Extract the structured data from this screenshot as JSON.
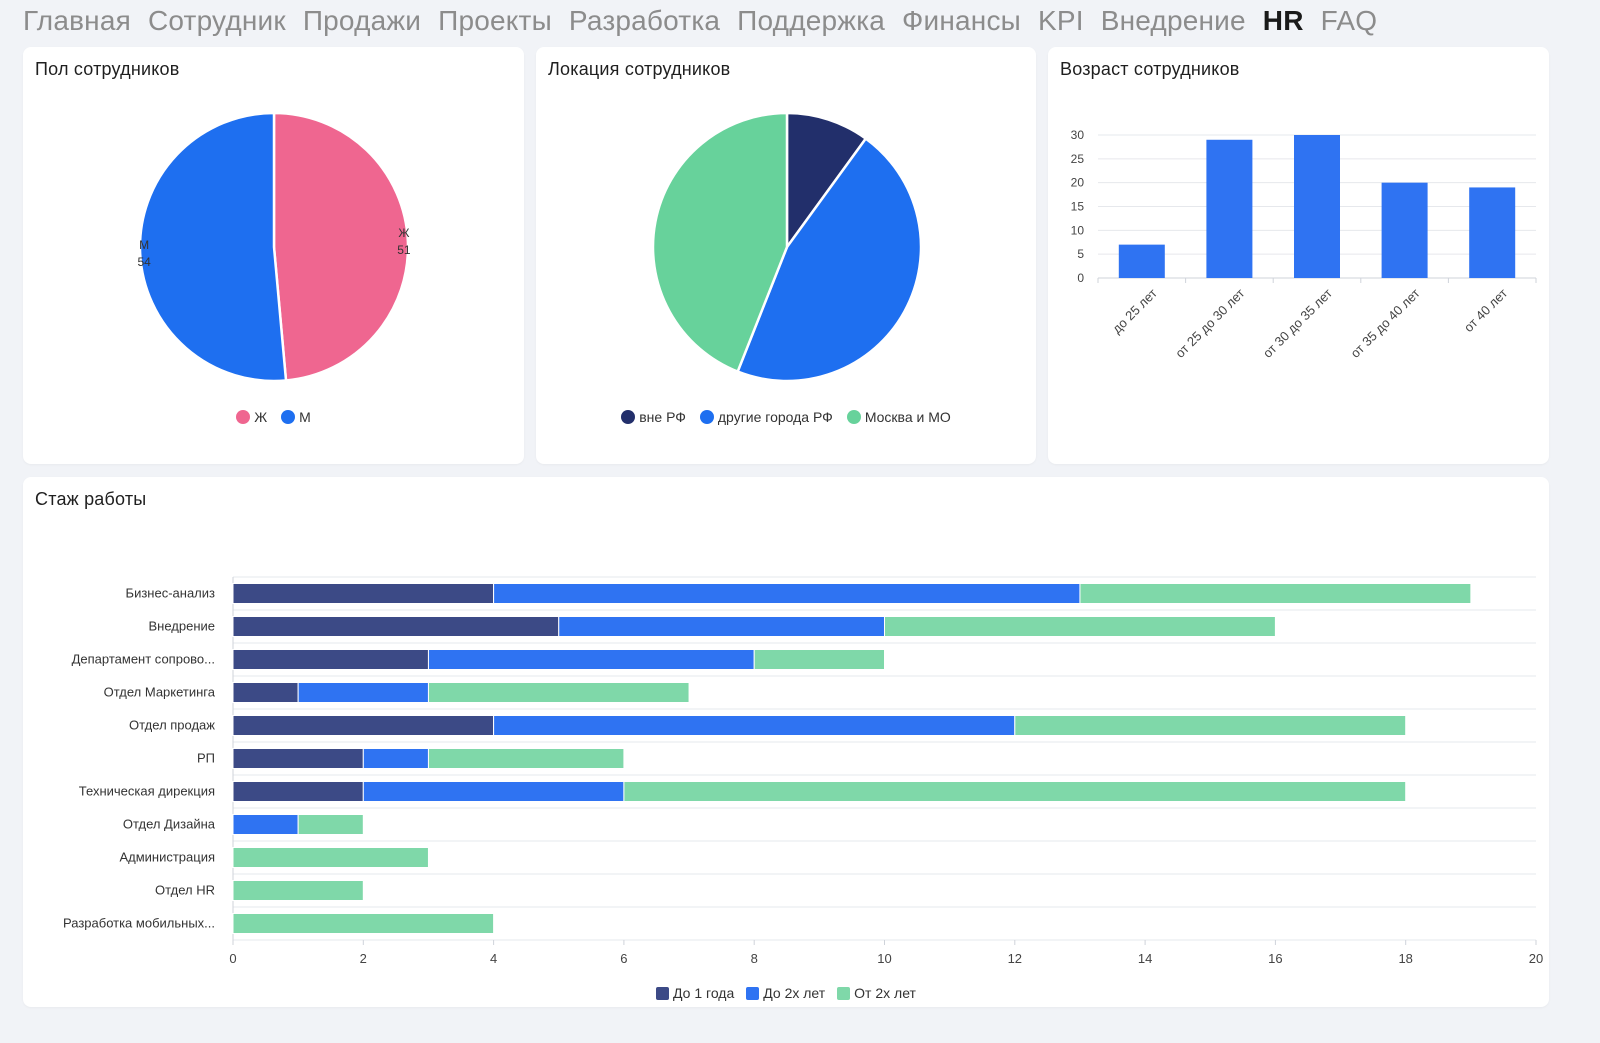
{
  "nav": {
    "tabs": [
      {
        "label": "Главная"
      },
      {
        "label": "Сотрудник"
      },
      {
        "label": "Продажи"
      },
      {
        "label": "Проекты"
      },
      {
        "label": "Разработка"
      },
      {
        "label": "Поддержка"
      },
      {
        "label": "Финансы"
      },
      {
        "label": "KPI"
      },
      {
        "label": "Внедрение"
      },
      {
        "label": "HR",
        "active": true
      },
      {
        "label": "FAQ"
      }
    ]
  },
  "gender": {
    "title": "Пол сотрудников",
    "chart_data": {
      "type": "pie",
      "slices": [
        {
          "label": "Ж",
          "value": 51,
          "color": "#ef6690"
        },
        {
          "label": "М",
          "value": 54,
          "color": "#1e6ff0"
        }
      ]
    }
  },
  "location": {
    "title": "Локация сотрудников",
    "chart_data": {
      "type": "pie",
      "slices": [
        {
          "label": "вне РФ",
          "value": 10,
          "color": "#222f6b"
        },
        {
          "label": "другие города РФ",
          "value": 46,
          "color": "#1e6ff0"
        },
        {
          "label": "Москва и МО",
          "value": 44,
          "color": "#67d29b"
        }
      ]
    }
  },
  "age": {
    "title": "Возраст сотрудников",
    "chart_data": {
      "type": "bar",
      "categories": [
        "до 25 лет",
        "от 25 до 30 лет",
        "от 30 до 35 лет",
        "от 35 до 40 лет",
        "от 40 лет"
      ],
      "values": [
        7,
        29,
        30,
        20,
        19
      ],
      "ylim": [
        0,
        30
      ],
      "yticks": [
        0,
        5,
        10,
        15,
        20,
        25,
        30
      ],
      "color": "#2f73f2",
      "grid": true
    }
  },
  "tenure": {
    "title": "Стаж работы",
    "chart_data": {
      "type": "bar",
      "orientation": "horizontal",
      "stacked": true,
      "categories": [
        "Бизнес-анализ",
        "Внедрение",
        "Департамент сопрово...",
        "Отдел Маркетинга",
        "Отдел продаж",
        "РП",
        "Техническая дирекция",
        "Отдел Дизайна",
        "Администрация",
        "Отдел HR",
        "Разработка мобильных..."
      ],
      "series": [
        {
          "name": "До 1 года",
          "color": "#3c4a86",
          "values": [
            4,
            5,
            3,
            1,
            4,
            2,
            2,
            0,
            0,
            0,
            0
          ]
        },
        {
          "name": "До 2х лет",
          "color": "#2f73f2",
          "values": [
            9,
            5,
            5,
            2,
            8,
            1,
            4,
            1,
            0,
            0,
            0
          ]
        },
        {
          "name": "От 2х лет",
          "color": "#7fd8a9",
          "values": [
            6,
            6,
            2,
            4,
            6,
            3,
            12,
            1,
            3,
            2,
            4
          ]
        }
      ],
      "xlim": [
        0,
        20
      ],
      "xticks": [
        0,
        2,
        4,
        6,
        8,
        10,
        12,
        14,
        16,
        18,
        20
      ],
      "grid": true,
      "legend": "bottom"
    }
  }
}
